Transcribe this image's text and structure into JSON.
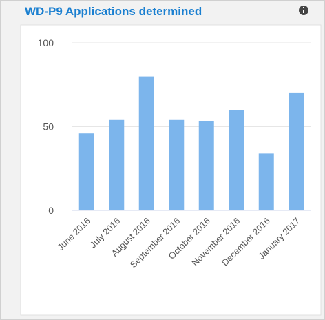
{
  "chart_data": {
    "type": "bar",
    "title": "WD-P9 Applications determined",
    "categories": [
      "June 2016",
      "July 2016",
      "August 2016",
      "September 2016",
      "October 2016",
      "November 2016",
      "December 2016",
      "January 2017"
    ],
    "values": [
      46,
      54,
      80,
      54,
      53.5,
      60,
      34,
      70
    ],
    "color": "#7cb5ec",
    "ylim": [
      0,
      100
    ],
    "yticks": [
      0,
      50,
      100
    ],
    "grid": true
  }
}
